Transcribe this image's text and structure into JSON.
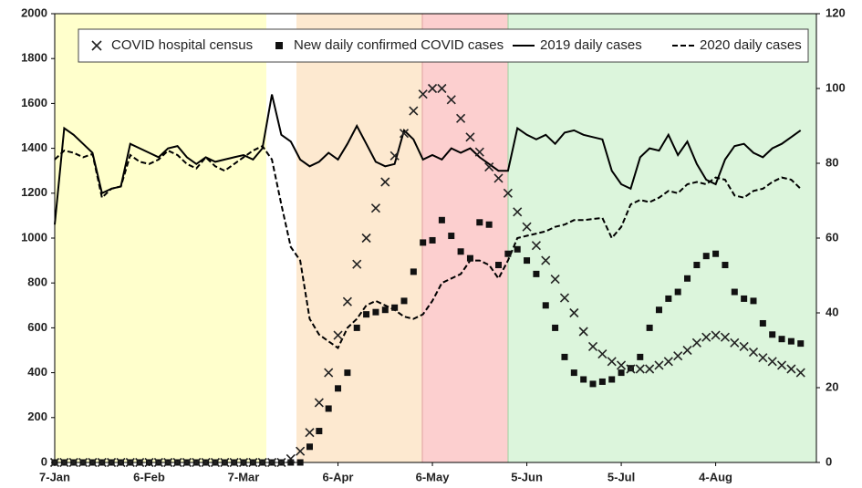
{
  "chart_data": {
    "type": "line",
    "x": [
      0,
      3,
      6,
      9,
      12,
      15,
      18,
      21,
      24,
      27,
      30,
      33,
      36,
      39,
      42,
      45,
      48,
      51,
      54,
      57,
      60,
      63,
      66,
      69,
      72,
      75,
      78,
      81,
      84,
      87,
      90,
      93,
      96,
      99,
      102,
      105,
      108,
      111,
      114,
      117,
      120,
      123,
      126,
      129,
      132,
      135,
      138,
      141,
      144,
      147,
      150,
      153,
      156,
      159,
      162,
      165,
      168,
      171,
      174,
      177,
      180,
      183,
      186,
      189,
      192,
      195,
      198,
      201,
      204,
      207,
      210,
      213,
      216,
      219,
      222,
      225,
      228,
      231,
      234,
      237
    ],
    "xlim": [
      0,
      242
    ],
    "xticks": [
      {
        "value": 0,
        "label": "7-Jan"
      },
      {
        "value": 30,
        "label": "6-Feb"
      },
      {
        "value": 60,
        "label": "7-Mar"
      },
      {
        "value": 90,
        "label": "6-Apr"
      },
      {
        "value": 120,
        "label": "6-May"
      },
      {
        "value": 150,
        "label": "5-Jun"
      },
      {
        "value": 180,
        "label": "5-Jul"
      },
      {
        "value": 210,
        "label": "4-Aug"
      }
    ],
    "ylim": [
      0,
      2000
    ],
    "yticks": [
      0,
      200,
      400,
      600,
      800,
      1000,
      1200,
      1400,
      1600,
      1800,
      2000
    ],
    "y2lim": [
      0,
      120
    ],
    "y2ticks": [
      0,
      20,
      40,
      60,
      80,
      100,
      120
    ],
    "legend": "top",
    "series": [
      {
        "name": "COVID hospital census",
        "color": "#222222",
        "marker": "x",
        "axis": "y2",
        "values": [
          0,
          0,
          0,
          0,
          0,
          0,
          0,
          0,
          0,
          0,
          0,
          0,
          0,
          0,
          0,
          0,
          0,
          0,
          0,
          0,
          0,
          0,
          0,
          0,
          0,
          1,
          3,
          8,
          16,
          24,
          34,
          43,
          53,
          60,
          68,
          75,
          82,
          88,
          94,
          98.5,
          100,
          100,
          97,
          92,
          87,
          83,
          79,
          76,
          72,
          67,
          63,
          58,
          54,
          49,
          44,
          40,
          35,
          31,
          29,
          27,
          26,
          25,
          25,
          25,
          26,
          27,
          28.5,
          30,
          32,
          33.5,
          34,
          33.5,
          32,
          31,
          29.5,
          28,
          27,
          26,
          25,
          24
        ]
      },
      {
        "name": "New daily confirmed COVID cases",
        "color": "#111111",
        "marker": "square",
        "values": [
          0,
          0,
          0,
          0,
          0,
          0,
          0,
          0,
          0,
          0,
          0,
          0,
          0,
          0,
          0,
          0,
          0,
          0,
          0,
          0,
          0,
          0,
          0,
          0,
          0,
          0,
          0,
          70,
          140,
          240,
          330,
          400,
          600,
          660,
          670,
          680,
          690,
          720,
          850,
          980,
          990,
          1080,
          1010,
          940,
          910,
          1070,
          1060,
          880,
          930,
          950,
          900,
          840,
          700,
          600,
          470,
          400,
          370,
          350,
          360,
          370,
          400,
          420,
          470,
          600,
          680,
          730,
          760,
          820,
          880,
          920,
          930,
          880,
          760,
          730,
          720,
          620,
          570,
          550,
          540,
          530
        ]
      },
      {
        "name": "2019 daily cases",
        "color": "#000000",
        "line": "solid",
        "values": [
          1060,
          1490,
          1460,
          1420,
          1380,
          1200,
          1220,
          1230,
          1420,
          1400,
          1380,
          1360,
          1400,
          1410,
          1360,
          1330,
          1360,
          1340,
          1350,
          1360,
          1370,
          1350,
          1400,
          1640,
          1460,
          1430,
          1350,
          1320,
          1340,
          1380,
          1350,
          1420,
          1500,
          1420,
          1340,
          1320,
          1330,
          1480,
          1440,
          1350,
          1370,
          1350,
          1400,
          1380,
          1400,
          1360,
          1330,
          1300,
          1300,
          1490,
          1460,
          1440,
          1460,
          1420,
          1470,
          1480,
          1460,
          1450,
          1440,
          1300,
          1240,
          1220,
          1360,
          1400,
          1390,
          1460,
          1370,
          1430,
          1330,
          1260,
          1240,
          1350,
          1410,
          1420,
          1380,
          1360,
          1400,
          1420,
          1450,
          1480
        ]
      },
      {
        "name": "2020 daily cases",
        "color": "#000000",
        "line": "dashed",
        "values": [
          1350,
          1390,
          1380,
          1360,
          1375,
          1180,
          1220,
          1230,
          1370,
          1340,
          1330,
          1350,
          1390,
          1370,
          1330,
          1310,
          1360,
          1320,
          1300,
          1330,
          1360,
          1390,
          1410,
          1350,
          1150,
          960,
          900,
          640,
          570,
          540,
          510,
          600,
          640,
          700,
          720,
          700,
          680,
          650,
          640,
          660,
          720,
          800,
          820,
          840,
          900,
          900,
          880,
          820,
          900,
          1000,
          1010,
          1020,
          1030,
          1050,
          1060,
          1080,
          1080,
          1085,
          1090,
          1000,
          1050,
          1150,
          1170,
          1160,
          1180,
          1210,
          1200,
          1240,
          1250,
          1240,
          1270,
          1260,
          1190,
          1180,
          1210,
          1220,
          1250,
          1270,
          1260,
          1220
        ]
      }
    ]
  }
}
